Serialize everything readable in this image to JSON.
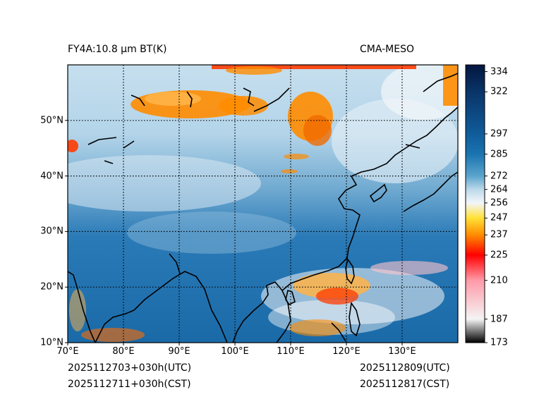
{
  "title_left": "FY4A:10.8 µm BT(K)",
  "title_right": "CMA-MESO",
  "init_utc": "2025112703+030h(UTC)",
  "init_cst": "2025112711+030h(CST)",
  "valid_utc": "2025112809(UTC)",
  "valid_cst": "2025112817(CST)",
  "map": {
    "lon_range": [
      70,
      140
    ],
    "lat_range": [
      10,
      60
    ],
    "lon_ticks": [
      {
        "value": 70,
        "label": "70°E"
      },
      {
        "value": 80,
        "label": "80°E"
      },
      {
        "value": 90,
        "label": "90°E"
      },
      {
        "value": 100,
        "label": "100°E"
      },
      {
        "value": 110,
        "label": "110°E"
      },
      {
        "value": 120,
        "label": "120°E"
      },
      {
        "value": 130,
        "label": "130°E"
      }
    ],
    "lat_ticks": [
      {
        "value": 10,
        "label": "10°N"
      },
      {
        "value": 20,
        "label": "20°N"
      },
      {
        "value": 30,
        "label": "30°N"
      },
      {
        "value": 40,
        "label": "40°N"
      },
      {
        "value": 50,
        "label": "50°N"
      }
    ]
  },
  "colorbar": {
    "range": [
      173,
      338
    ],
    "ticks": [
      {
        "value": 334,
        "label": "334"
      },
      {
        "value": 322,
        "label": "322"
      },
      {
        "value": 297,
        "label": "297"
      },
      {
        "value": 285,
        "label": "285"
      },
      {
        "value": 272,
        "label": "272"
      },
      {
        "value": 264,
        "label": "264"
      },
      {
        "value": 256,
        "label": "256"
      },
      {
        "value": 247,
        "label": "247"
      },
      {
        "value": 237,
        "label": "237"
      },
      {
        "value": 225,
        "label": "225"
      },
      {
        "value": 210,
        "label": "210"
      },
      {
        "value": 187,
        "label": "187"
      },
      {
        "value": 173,
        "label": "173"
      }
    ],
    "stops": [
      {
        "value": 173,
        "color": "#000000"
      },
      {
        "value": 187,
        "color": "#f4f4f4"
      },
      {
        "value": 210,
        "color": "#ff9aa8"
      },
      {
        "value": 225,
        "color": "#ff0000"
      },
      {
        "value": 237,
        "color": "#ff8c00"
      },
      {
        "value": 247,
        "color": "#ffe135"
      },
      {
        "value": 256,
        "color": "#f2f6fa"
      },
      {
        "value": 264,
        "color": "#bcd9ea"
      },
      {
        "value": 272,
        "color": "#5aa4cc"
      },
      {
        "value": 285,
        "color": "#1a74b0"
      },
      {
        "value": 297,
        "color": "#0f5c9a"
      },
      {
        "value": 322,
        "color": "#0a3468"
      },
      {
        "value": 338,
        "color": "#03163f"
      }
    ]
  }
}
